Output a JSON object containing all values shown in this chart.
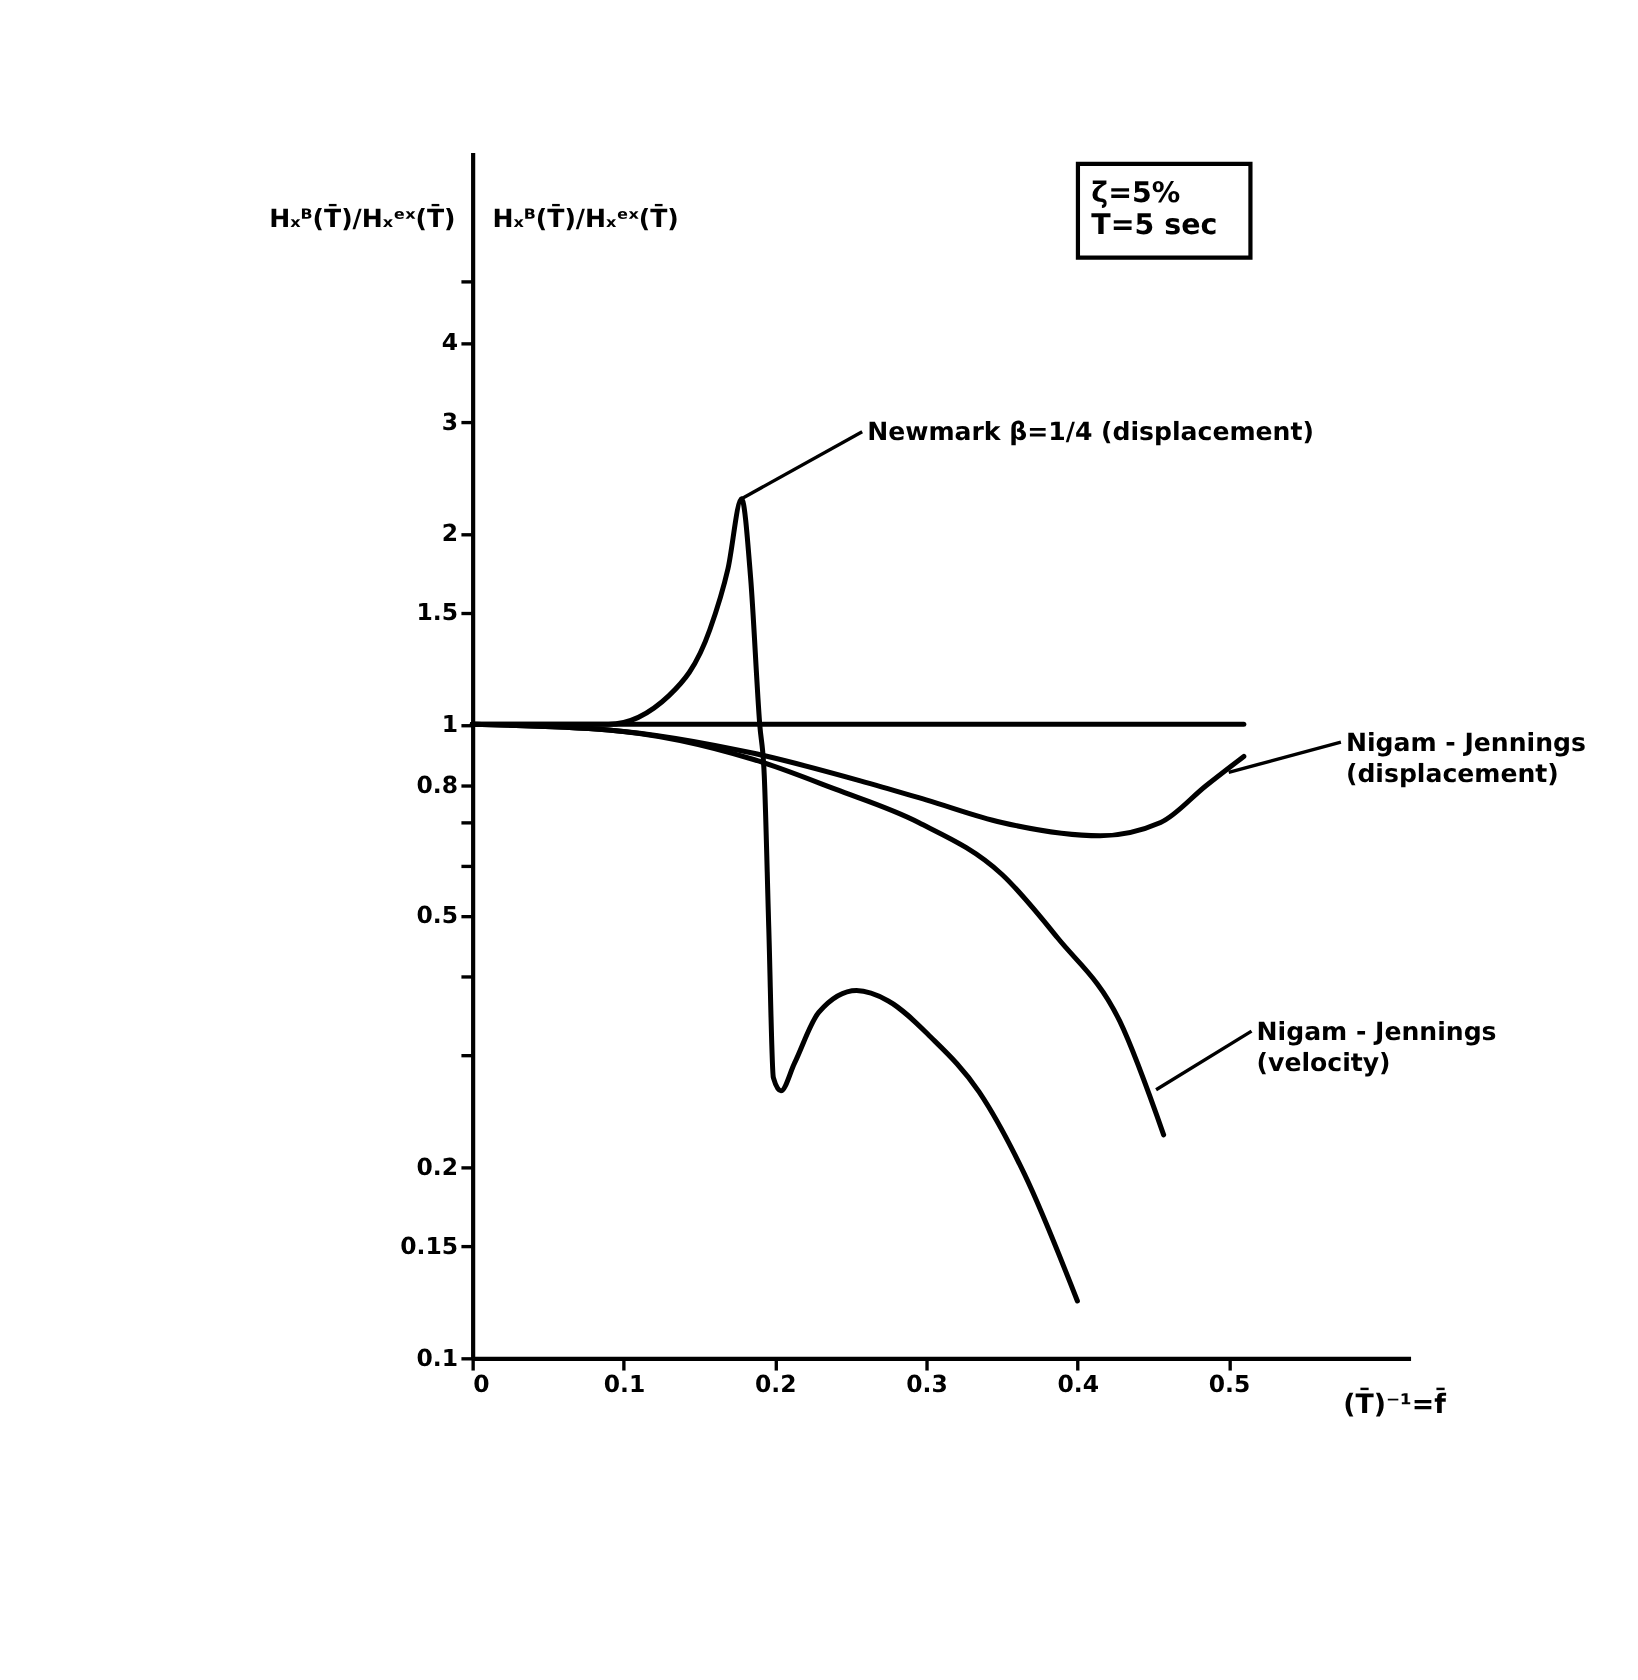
{
  "chart_data": {
    "type": "line",
    "xlabel": "(T̄)⁻¹=f̄",
    "ylabel": "Hₓᴮ(T̄)/Hₓᵉˣ(T̄)",
    "xlim": [
      0,
      0.62
    ],
    "xticks": [
      0,
      0.1,
      0.2,
      0.3,
      0.4,
      0.5
    ],
    "ylim": [
      0.1,
      8
    ],
    "log": true,
    "yticks": [
      0.1,
      0.15,
      0.2,
      {
        "value": 0.3,
        "label": null
      },
      {
        "value": 0.4,
        "label": null
      },
      0.5,
      {
        "value": 0.6,
        "label": null
      },
      {
        "value": 0.7,
        "label": null
      },
      0.8,
      1,
      1.5,
      2,
      3,
      4,
      {
        "value": 5,
        "label": null
      }
    ],
    "grid": false,
    "marker": "none",
    "line_style": "solid",
    "series": [
      {
        "color": "#000000",
        "x": [
          0,
          0.09,
          0.13,
          0.157,
          0.169,
          0.178,
          0.184,
          0.19,
          0.193,
          0.196,
          0.199,
          0.204,
          0.213,
          0.229,
          0.254,
          0.275,
          0.303,
          0.335,
          0.365,
          0.4
        ],
        "values": [
          1,
          1,
          1.11,
          1.41,
          1.76,
          2.27,
          1.7,
          1,
          0.83,
          0.475,
          0.277,
          0.264,
          0.292,
          0.351,
          0.38,
          0.366,
          0.321,
          0.263,
          0.195,
          0.123
        ]
      },
      {
        "color": "#000000",
        "x": [
          0,
          0.51
        ],
        "values": [
          1,
          1
        ]
      },
      {
        "color": "#000000",
        "x": [
          0,
          0.09,
          0.186,
          0.26,
          0.3,
          0.35,
          0.415,
          0.455,
          0.485,
          0.51
        ],
        "values": [
          1,
          0.98,
          0.9,
          0.81,
          0.76,
          0.7,
          0.667,
          0.7,
          0.8,
          0.89
        ]
      },
      {
        "color": "#000000",
        "x": [
          0,
          0.09,
          0.186,
          0.24,
          0.295,
          0.35,
          0.387,
          0.428,
          0.457
        ],
        "values": [
          1,
          0.98,
          0.88,
          0.79,
          0.7,
          0.58,
          0.46,
          0.34,
          0.225
        ]
      }
    ],
    "annotations": [
      {
        "text": "Newmark β=1/4 (displacement)",
        "x": 0.178,
        "y": 2.27
      },
      {
        "text": "Nigam - Jennings\n(displacement)",
        "x": 0.5,
        "y": 0.84
      },
      {
        "text": "Nigam - Jennings\n(velocity)",
        "x": 0.452,
        "y": 0.265
      },
      "ζ=5%\nT=5 sec",
      "Hₓᴮ(T̄)/Hₓᵉˣ(T̄)"
    ]
  }
}
